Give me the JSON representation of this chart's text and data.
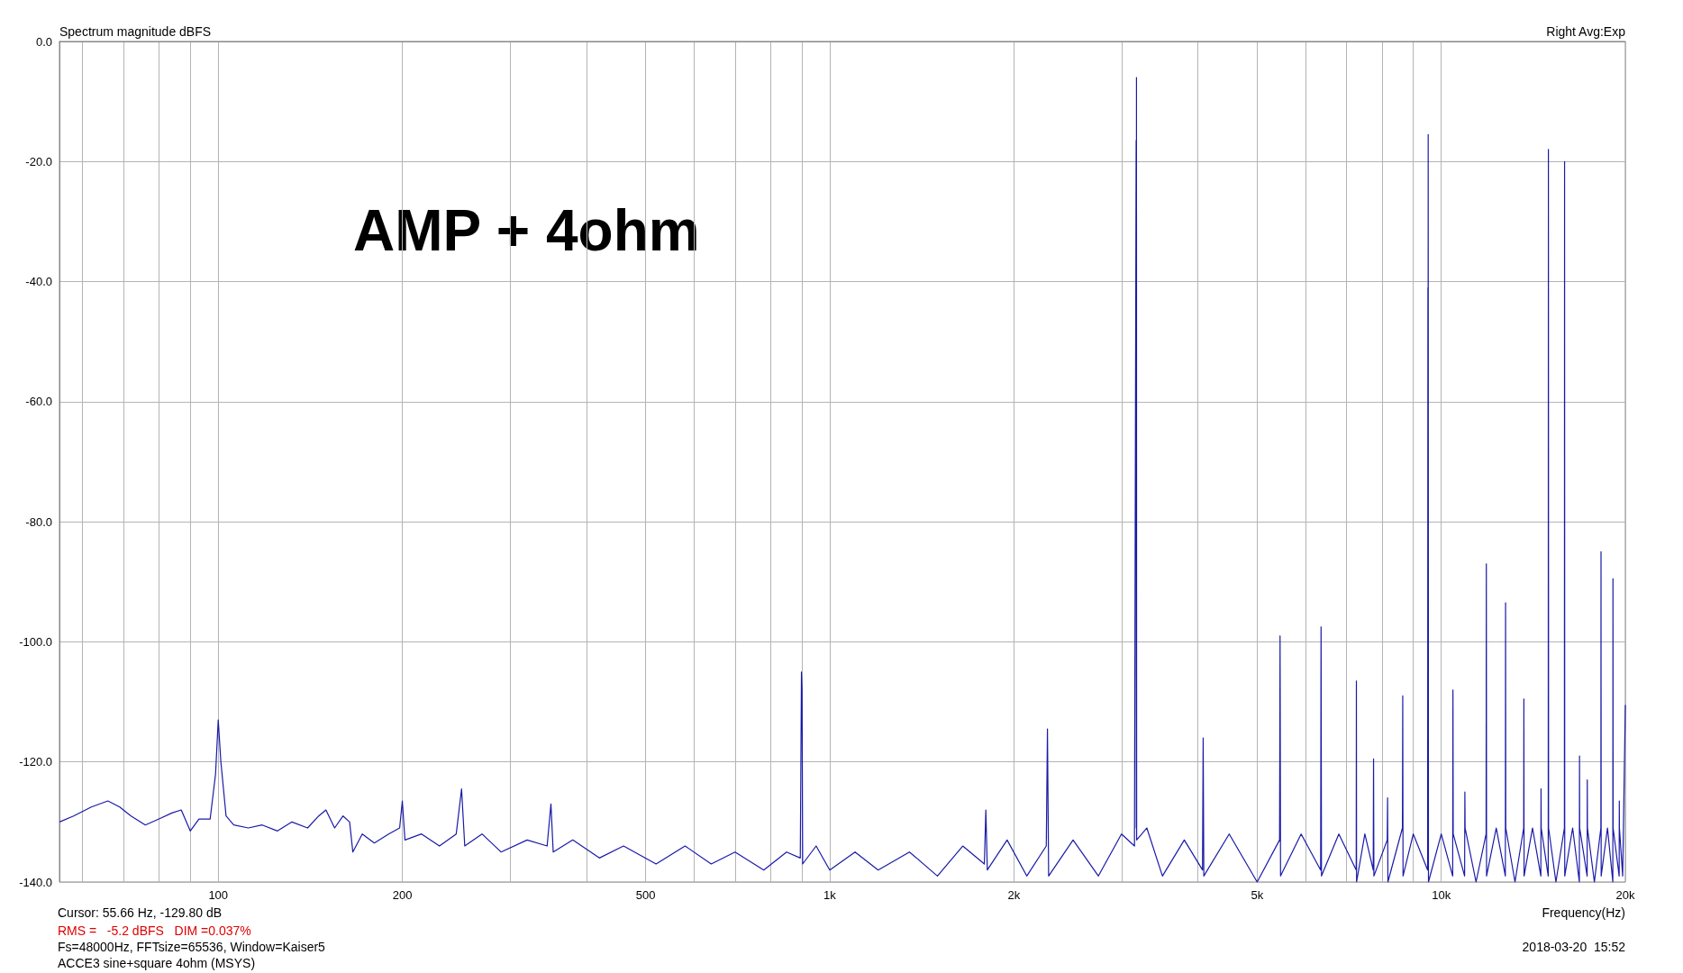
{
  "chart_data": {
    "type": "line",
    "title": "Spectrum magnitude dBFS",
    "xlabel": "Frequency(Hz)",
    "annotations": [
      "AMP + 4ohm",
      "Right Avg:Exp",
      "Cursor: 55.66 Hz, -129.80 dB",
      "RMS =   -5.2 dBFS   DIM =0.037%",
      "Fs=48000Hz, FFTsize=65536, Window=Kaiser5",
      "ACCE3 sine+square 4ohm (MSYS)",
      "2018-03-20  15:52"
    ],
    "log": "x",
    "grid": true,
    "marker": "none",
    "line_style": "solid",
    "xlim": [
      55,
      20000
    ],
    "ylim": [
      -140,
      0
    ],
    "xticks": [
      {
        "value": 60,
        "label": null
      },
      {
        "value": 70,
        "label": null
      },
      {
        "value": 80,
        "label": null
      },
      {
        "value": 90,
        "label": null
      },
      100,
      200,
      {
        "value": 300,
        "label": null
      },
      {
        "value": 400,
        "label": null
      },
      500,
      {
        "value": 600,
        "label": null
      },
      {
        "value": 700,
        "label": null
      },
      {
        "value": 800,
        "label": null
      },
      {
        "value": 900,
        "label": null
      },
      {
        "value": 1000,
        "label": "1k"
      },
      {
        "value": 2000,
        "label": "2k"
      },
      {
        "value": 3000,
        "label": null
      },
      {
        "value": 4000,
        "label": null
      },
      {
        "value": 5000,
        "label": "5k"
      },
      {
        "value": 6000,
        "label": null
      },
      {
        "value": 7000,
        "label": null
      },
      {
        "value": 8000,
        "label": null
      },
      {
        "value": 9000,
        "label": null
      },
      {
        "value": 10000,
        "label": "10k"
      },
      {
        "value": 20000,
        "label": "20k"
      }
    ],
    "yticks": [
      {
        "value": -140,
        "label": "-140.0"
      },
      {
        "value": -120,
        "label": "-120.0"
      },
      {
        "value": -100,
        "label": "-100.0"
      },
      {
        "value": -80,
        "label": "-80.0"
      },
      {
        "value": -60,
        "label": "-60.0"
      },
      {
        "value": -40,
        "label": "-40.0"
      },
      {
        "value": -20,
        "label": "-20.0"
      },
      {
        "value": 0,
        "label": "0.0"
      }
    ],
    "series": [
      {
        "color": "#1a1aa8",
        "x": [
          55,
          58,
          62,
          66,
          69,
          72,
          76,
          80,
          84,
          87,
          90,
          93,
          97,
          99,
          100,
          101,
          103,
          106,
          112,
          118,
          125,
          132,
          140,
          146,
          150,
          155,
          160,
          164,
          166,
          172,
          180,
          190,
          198,
          200,
          202,
          215,
          230,
          245,
          250,
          253,
          270,
          290,
          320,
          345,
          350,
          353,
          380,
          420,
          460,
          520,
          580,
          640,
          700,
          780,
          850,
          895,
          899,
          901,
          903,
          950,
          1000,
          1100,
          1200,
          1350,
          1500,
          1650,
          1790,
          1800,
          1810,
          1950,
          2100,
          2260,
          2270,
          2280,
          2500,
          2750,
          3000,
          3150,
          3170,
          3172,
          3174,
          3176,
          3300,
          3500,
          3800,
          4070,
          4080,
          4090,
          4500,
          5000,
          5440,
          5450,
          5460,
          5900,
          6350,
          6360,
          6370,
          6800,
          7260,
          7265,
          7270,
          7500,
          7740,
          7750,
          7760,
          8160,
          8170,
          8180,
          8640,
          8650,
          8660,
          9000,
          9500,
          9510,
          9515,
          9520,
          9530,
          10000,
          10440,
          10450,
          10460,
          10920,
          10930,
          10940,
          11400,
          11840,
          11850,
          11860,
          12300,
          12730,
          12740,
          12750,
          13200,
          13640,
          13650,
          13660,
          14100,
          14550,
          14560,
          14570,
          14960,
          14970,
          14980,
          15400,
          15900,
          15910,
          15920,
          16400,
          16820,
          16830,
          16840,
          17320,
          17330,
          17340,
          17800,
          18240,
          18250,
          18260,
          18700,
          19080,
          19090,
          19100,
          19540,
          19550,
          19560,
          19800,
          20000
        ],
        "values": [
          -130,
          -129,
          -127.5,
          -126.5,
          -127.5,
          -129,
          -130.5,
          -129.5,
          -128.5,
          -128,
          -131.5,
          -129.5,
          -129.5,
          -122,
          -113,
          -120,
          -129,
          -130.5,
          -131,
          -130.5,
          -131.5,
          -130,
          -131,
          -129,
          -128,
          -131,
          -129,
          -130,
          -135,
          -132,
          -133.5,
          -132,
          -131,
          -126.5,
          -133,
          -132,
          -134,
          -132,
          -124.5,
          -134,
          -132,
          -135,
          -133,
          -134,
          -127,
          -135,
          -133,
          -136,
          -134,
          -137,
          -134,
          -137,
          -135,
          -138,
          -135,
          -136,
          -105,
          -108,
          -137,
          -134,
          -138,
          -135,
          -138,
          -135,
          -139,
          -134,
          -137,
          -128,
          -138,
          -133,
          -139,
          -134,
          -114.5,
          -139,
          -133,
          -139,
          -132,
          -134,
          -16.5,
          -131,
          -6,
          -133,
          -131,
          -139,
          -133,
          -138,
          -116,
          -139,
          -132,
          -140,
          -133,
          -99,
          -139,
          -132,
          -138,
          -97.5,
          -139,
          -132,
          -138,
          -106.5,
          -140,
          -132,
          -138,
          -119.5,
          -139,
          -133,
          -126,
          -140,
          -131,
          -109,
          -139,
          -132,
          -138,
          -41,
          -131,
          -15.5,
          -140,
          -132,
          -139,
          -108,
          -132,
          -139,
          -125,
          -131,
          -140,
          -132,
          -87,
          -139,
          -131,
          -139,
          -93.5,
          -131,
          -140,
          -131,
          -109.5,
          -139,
          -131,
          -139,
          -124.5,
          -131,
          -139,
          -18,
          -131,
          -140,
          -131,
          -20,
          -139,
          -131,
          -140,
          -119,
          -131,
          -139,
          -123,
          -131,
          -140,
          -131,
          -85,
          -139,
          -131,
          -140,
          -89.5,
          -131,
          -139,
          -126.5,
          -131,
          -139,
          -110.5
        ]
      }
    ]
  }
}
